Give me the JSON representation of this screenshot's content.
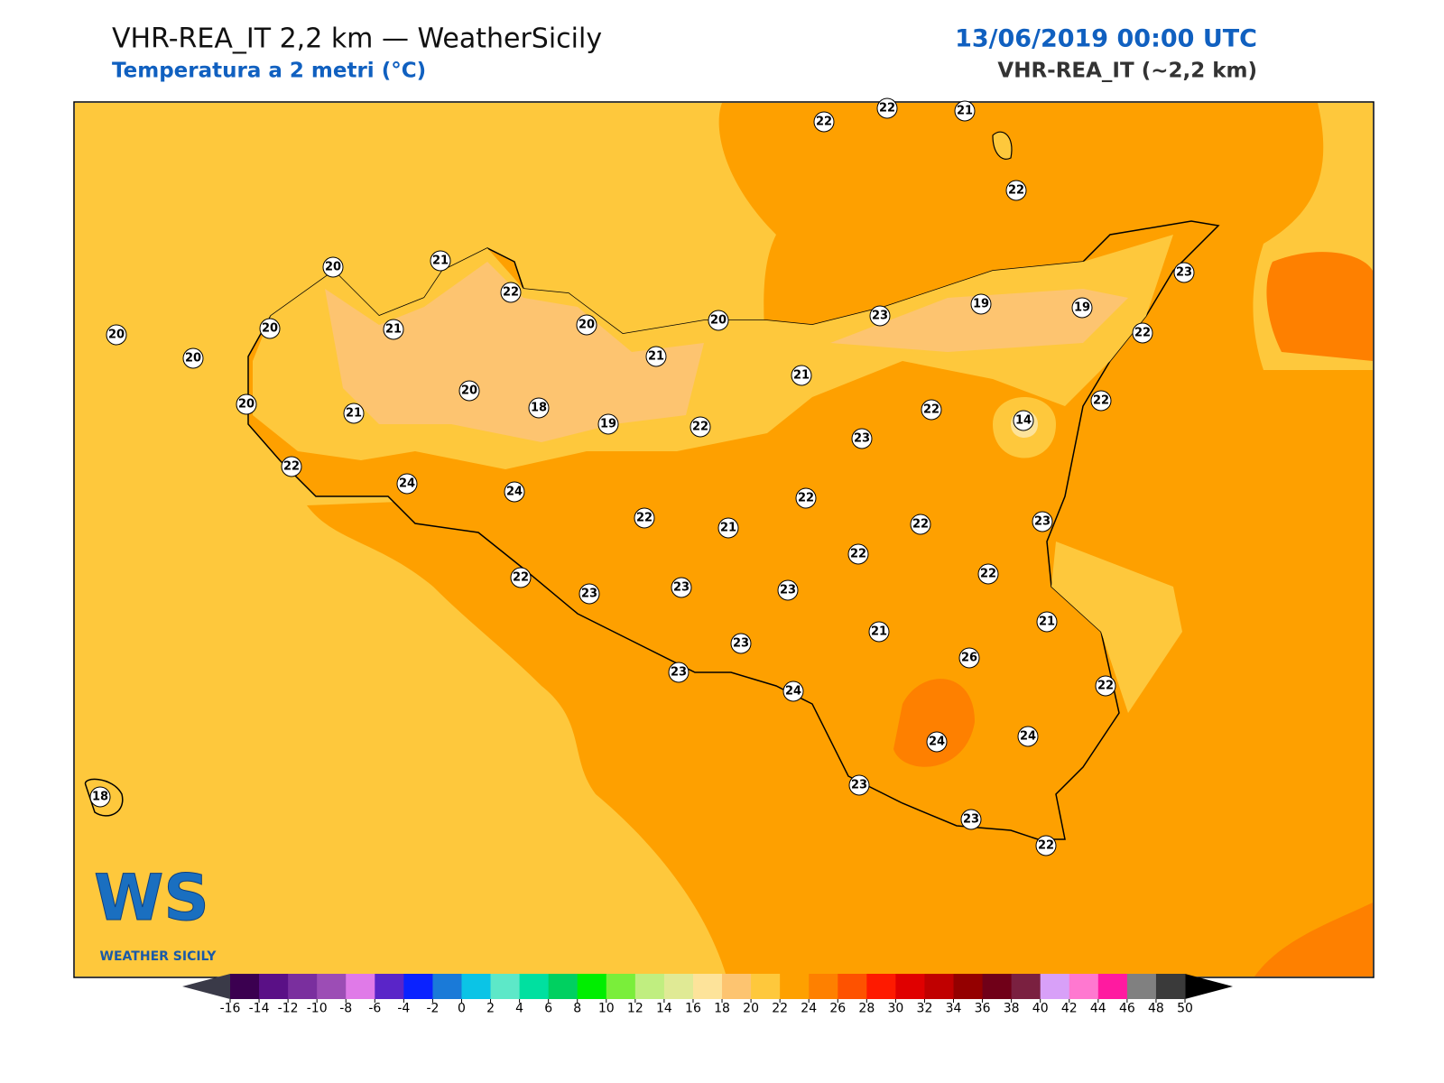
{
  "header": {
    "title": "VHR-REA_IT 2,2 km — WeatherSicily",
    "subtitle": "Temperatura a 2 metri (°C)",
    "datetime": "13/06/2019 00:00 UTC",
    "model": "VHR-REA_IT (~2,2 km)"
  },
  "stations": [
    20,
    20,
    20,
    20,
    21,
    21,
    22,
    20,
    21,
    20,
    21,
    22,
    22,
    21,
    22,
    23,
    19,
    19,
    23,
    22,
    22,
    14,
    22,
    23,
    20,
    21,
    20,
    18,
    19,
    22,
    22,
    24,
    24,
    22,
    21,
    22,
    22,
    22,
    23,
    22,
    22,
    23,
    23,
    23,
    23,
    21,
    21,
    26,
    23,
    24,
    22,
    24,
    24,
    23,
    23,
    22,
    18
  ],
  "logo": {
    "mark": "WS",
    "name": "WEATHER SICILY"
  },
  "colorbar": {
    "ticks": [
      -16,
      -14,
      -12,
      -10,
      -8,
      -6,
      -4,
      -2,
      0,
      2,
      4,
      6,
      8,
      10,
      12,
      14,
      16,
      18,
      20,
      22,
      24,
      26,
      28,
      30,
      32,
      34,
      36,
      38,
      40,
      42,
      44,
      46,
      48,
      50
    ],
    "colors": [
      "#3b0050",
      "#5a1086",
      "#7a2f9e",
      "#9c4db5",
      "#e07ae8",
      "#5a25c8",
      "#0a22ff",
      "#1a7ad8",
      "#0bc4e6",
      "#5de8c8",
      "#00e0a0",
      "#00d060",
      "#00ee00",
      "#7aee3a",
      "#c0ee80",
      "#e0ea95",
      "#fde39a",
      "#fdc470",
      "#fec83c",
      "#fea000",
      "#fe8000",
      "#fe5200",
      "#fe1a00",
      "#e00000",
      "#c00000",
      "#940000",
      "#700018",
      "#7a2040",
      "#d8a0f8",
      "#ff78d0",
      "#ff1aa0",
      "#808080",
      "#3a3a3a"
    ],
    "under": "#3a3a48",
    "over": "#000000"
  }
}
